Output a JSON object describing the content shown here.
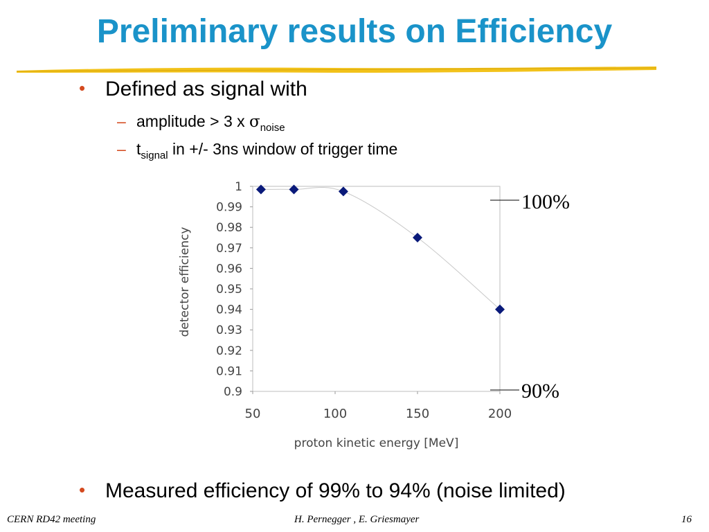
{
  "slide": {
    "title": "Preliminary results on Efficiency",
    "bullet1": "Defined as signal with",
    "sub1": {
      "text": "amplitude > 3 x ",
      "symbol": "σ",
      "subscript": "noise"
    },
    "sub2": {
      "prefix": "t",
      "subscript": "signal",
      "text": " in +/- 3ns window of trigger time"
    },
    "bullet2": "Measured efficiency of 99% to 94% (noise limited)",
    "ref_top": "100%",
    "ref_bottom": "90%",
    "footer": {
      "left": "CERN RD42 meeting",
      "center": "H. Pernegger , E. Griesmayer",
      "page": "16"
    },
    "colors": {
      "title": "#1a93c9",
      "bullet_marker": "#d44a1f",
      "marker": "#0a1a7a",
      "rule": "#f2c21a"
    }
  },
  "chart_data": {
    "type": "scatter",
    "xlabel": "proton kinetic energy [MeV]",
    "ylabel": "detector efficiency",
    "xlim": [
      50,
      200
    ],
    "ylim": [
      0.9,
      1.0
    ],
    "xticks": [
      "50",
      "100",
      "150",
      "200"
    ],
    "yticks": [
      "1",
      "0.99",
      "0.98",
      "0.97",
      "0.96",
      "0.95",
      "0.94",
      "0.93",
      "0.92",
      "0.91",
      "0.9"
    ],
    "grid": false,
    "trendline": true,
    "series": [
      {
        "x": [
          55,
          75,
          105,
          150,
          200
        ],
        "y": [
          0.9985,
          0.9985,
          0.9975,
          0.975,
          0.94
        ]
      }
    ]
  }
}
